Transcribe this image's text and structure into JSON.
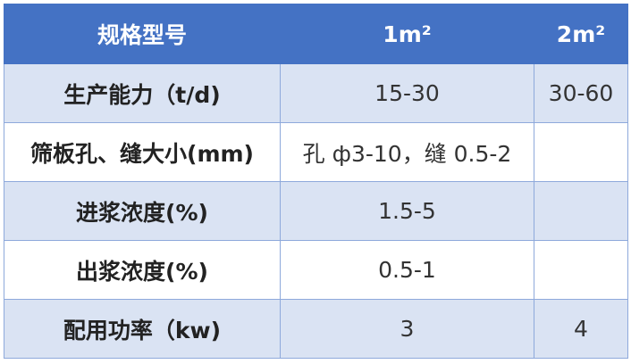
{
  "colors": {
    "header": "#4472C4",
    "band": "#DAE3F3",
    "border": "#8EA9DB"
  },
  "header": [
    "规格型号",
    "1m²",
    "2m²"
  ],
  "rows": [
    {
      "label": "生产能力（t/d)",
      "c1": "15-30",
      "c2": "30-60"
    },
    {
      "label": "筛板孔、缝大小(mm)",
      "c1": "孔 ф3-10，缝 0.5-2",
      "c2": ""
    },
    {
      "label": "进浆浓度(%)",
      "c1": "1.5-5",
      "c2": ""
    },
    {
      "label": "出浆浓度(%)",
      "c1": "0.5-1",
      "c2": ""
    },
    {
      "label": "配用功率（kw)",
      "c1": "3",
      "c2": "4"
    }
  ]
}
